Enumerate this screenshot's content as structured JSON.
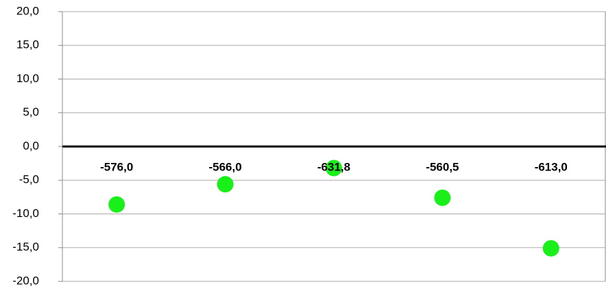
{
  "chart_data": {
    "type": "scatter",
    "values": [
      -8.6,
      -5.6,
      -3.2,
      -7.6,
      -15.1
    ],
    "point_labels": [
      "-576,0",
      "-566,0",
      "-631,8",
      "-560,5",
      "-613,0"
    ],
    "color": "#19f019",
    "ylim": [
      -20,
      20
    ],
    "yticks": [
      {
        "value": -20,
        "label": "-20,0"
      },
      {
        "value": -15,
        "label": "-15,0"
      },
      {
        "value": -10,
        "label": "-10,0"
      },
      {
        "value": -5,
        "label": "-5,0"
      },
      {
        "value": 0,
        "label": "0,0"
      },
      {
        "value": 5,
        "label": "5,0"
      },
      {
        "value": 10,
        "label": "10,0"
      },
      {
        "value": 15,
        "label": "15,0"
      },
      {
        "value": 20,
        "label": "20,0"
      }
    ],
    "grid": true
  }
}
